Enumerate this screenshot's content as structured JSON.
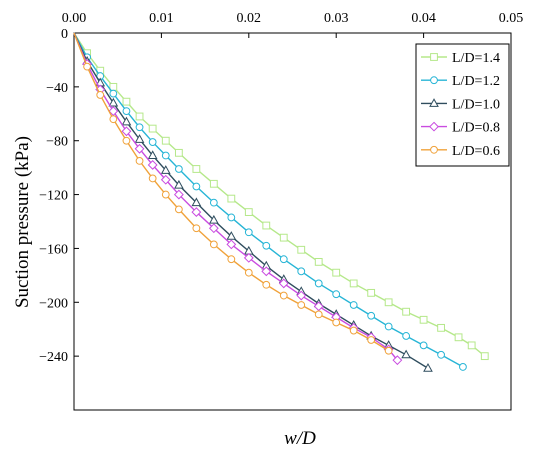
{
  "chart_data": {
    "type": "line",
    "xlabel": "w/D",
    "ylabel": "Suction pressure (kPa)",
    "xlim": [
      0,
      0.05
    ],
    "ylim": [
      -280,
      0
    ],
    "x_ticks": [
      "0.00",
      "0.01",
      "0.02",
      "0.03",
      "0.04",
      "0.05"
    ],
    "y_ticks": [
      "0",
      "−40",
      "−80",
      "−120",
      "−160",
      "−200",
      "−240"
    ],
    "x_axis_position": "top",
    "grid": false,
    "legend_position": "top-right",
    "series": [
      {
        "name": "L/D=1.4",
        "color": "#b5e88a",
        "marker": "square",
        "x": [
          0,
          0.0015,
          0.003,
          0.0045,
          0.006,
          0.0075,
          0.009,
          0.0105,
          0.012,
          0.014,
          0.016,
          0.018,
          0.02,
          0.022,
          0.024,
          0.026,
          0.028,
          0.03,
          0.032,
          0.034,
          0.036,
          0.038,
          0.04,
          0.042,
          0.044,
          0.0455,
          0.047
        ],
        "y": [
          0,
          -15,
          -28,
          -40,
          -51,
          -62,
          -71,
          -80,
          -89,
          -101,
          -112,
          -123,
          -133,
          -143,
          -152,
          -161,
          -170,
          -178,
          -186,
          -193,
          -200,
          -207,
          -213,
          -219,
          -226,
          -232,
          -240
        ]
      },
      {
        "name": "L/D=1.2",
        "color": "#27b5d6",
        "marker": "circle",
        "x": [
          0,
          0.0015,
          0.003,
          0.0045,
          0.006,
          0.0075,
          0.009,
          0.0105,
          0.012,
          0.014,
          0.016,
          0.018,
          0.02,
          0.022,
          0.024,
          0.026,
          0.028,
          0.03,
          0.032,
          0.034,
          0.036,
          0.038,
          0.04,
          0.042,
          0.0445
        ],
        "y": [
          0,
          -18,
          -32,
          -45,
          -58,
          -70,
          -81,
          -91,
          -101,
          -114,
          -126,
          -137,
          -148,
          -158,
          -168,
          -177,
          -186,
          -194,
          -202,
          -210,
          -218,
          -225,
          -232,
          -239,
          -248
        ]
      },
      {
        "name": "L/D=1.0",
        "color": "#2f4d5e",
        "marker": "triangle",
        "x": [
          0,
          0.0015,
          0.003,
          0.0045,
          0.006,
          0.0075,
          0.009,
          0.0105,
          0.012,
          0.014,
          0.016,
          0.018,
          0.02,
          0.022,
          0.024,
          0.026,
          0.028,
          0.03,
          0.032,
          0.034,
          0.036,
          0.038,
          0.0405
        ],
        "y": [
          0,
          -21,
          -37,
          -52,
          -66,
          -79,
          -91,
          -102,
          -113,
          -126,
          -139,
          -151,
          -162,
          -173,
          -183,
          -192,
          -201,
          -209,
          -217,
          -225,
          -232,
          -239,
          -249
        ]
      },
      {
        "name": "L/D=0.8",
        "color": "#c94ce0",
        "marker": "diamond",
        "x": [
          0,
          0.0015,
          0.003,
          0.0045,
          0.006,
          0.0075,
          0.009,
          0.0105,
          0.012,
          0.014,
          0.016,
          0.018,
          0.02,
          0.022,
          0.024,
          0.026,
          0.028,
          0.03,
          0.032,
          0.034,
          0.036,
          0.037
        ],
        "y": [
          0,
          -23,
          -42,
          -58,
          -73,
          -86,
          -98,
          -109,
          -120,
          -133,
          -145,
          -157,
          -167,
          -177,
          -186,
          -195,
          -203,
          -211,
          -219,
          -226,
          -235,
          -243
        ]
      },
      {
        "name": "L/D=0.6",
        "color": "#f0a23a",
        "marker": "circle",
        "x": [
          0,
          0.0015,
          0.003,
          0.0045,
          0.006,
          0.0075,
          0.009,
          0.0105,
          0.012,
          0.014,
          0.016,
          0.018,
          0.02,
          0.022,
          0.024,
          0.026,
          0.028,
          0.03,
          0.032,
          0.034,
          0.036
        ],
        "y": [
          0,
          -25,
          -46,
          -64,
          -80,
          -95,
          -108,
          -120,
          -131,
          -145,
          -157,
          -168,
          -178,
          -187,
          -195,
          -202,
          -209,
          -215,
          -221,
          -228,
          -236
        ]
      }
    ]
  }
}
